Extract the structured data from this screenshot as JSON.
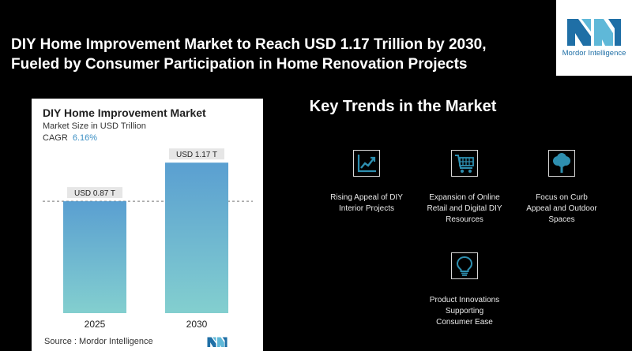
{
  "headline": {
    "line1": "DIY Home Improvement Market to Reach USD 1.17 Trillion by 2030,",
    "line2": "Fueled by Consumer Participation in Home Renovation Projects"
  },
  "brand": {
    "name": "Mordor Intelligence",
    "color": "#1f6fa6",
    "accent": "#5fb8d8"
  },
  "chart_card": {
    "source_label": "Source :",
    "source_name": "Mordor Intelligence"
  },
  "chart_data": {
    "type": "bar",
    "title": "DIY Home Improvement Market",
    "subtitle": "Market Size in USD Trillion",
    "cagr_label": "CAGR",
    "cagr_value": "6.16%",
    "categories": [
      "2025",
      "2030"
    ],
    "values": [
      0.87,
      1.17
    ],
    "data_labels": [
      "USD 0.87 T",
      "USD 1.17 T"
    ],
    "ylim": [
      0,
      1.3
    ],
    "grid": false,
    "reference_line_at": 0.87,
    "bar_colors": [
      "#5a9fd1",
      "#83cfcf"
    ]
  },
  "trends": {
    "title": "Key Trends in the Market",
    "items": [
      {
        "icon": "growth-chart-icon",
        "lines": [
          "Rising Appeal of DIY",
          "Interior Projects"
        ]
      },
      {
        "icon": "shopping-cart-icon",
        "lines": [
          "Expansion of Online",
          "Retail and Digital DIY",
          "Resources"
        ]
      },
      {
        "icon": "tree-icon",
        "lines": [
          "Focus on Curb",
          "Appeal and Outdoor",
          "Spaces"
        ]
      },
      {
        "icon": "lightbulb-icon",
        "lines": [
          "Product Innovations",
          "Supporting",
          "Consumer Ease"
        ]
      }
    ],
    "icon_color": "#2e8fb0"
  }
}
